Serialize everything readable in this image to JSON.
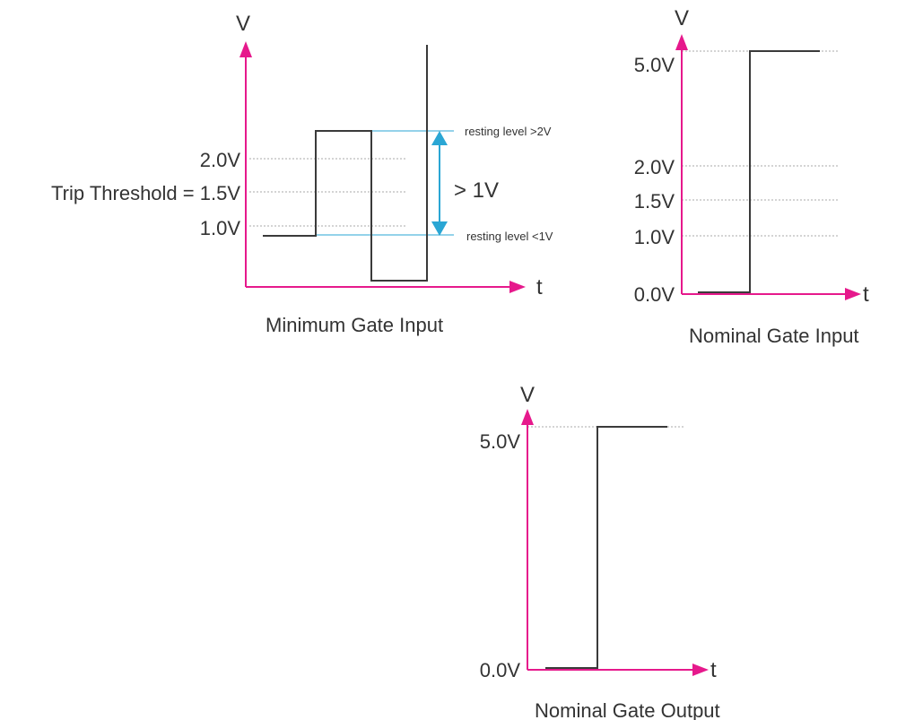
{
  "colors": {
    "axis": "#e6198c",
    "signal": "#3a3a3a",
    "guide": "#2aa6d4",
    "dotted": "#a8a8a8",
    "text": "#333333"
  },
  "icons": {
    "axis_arrow": "arrowhead-icon",
    "measure_arrow": "double-arrow-icon"
  },
  "min_input": {
    "v_label": "V",
    "t_label": "t",
    "level_2v": "2.0V",
    "trip_threshold": "Trip Threshold = 1.5V",
    "level_1v": "1.0V",
    "resting_high": "resting level >2V",
    "resting_low": "resting level <1V",
    "swing": "> 1V",
    "caption": "Minimum Gate Input"
  },
  "nom_input": {
    "v_label": "V",
    "t_label": "t",
    "level_5v": "5.0V",
    "level_2v": "2.0V",
    "level_15v": "1.5V",
    "level_1v": "1.0V",
    "level_0v": "0.0V",
    "caption": "Nominal Gate Input"
  },
  "nom_output": {
    "v_label": "V",
    "t_label": "t",
    "level_5v": "5.0V",
    "level_0v": "0.0V",
    "caption": "Nominal Gate Output"
  }
}
